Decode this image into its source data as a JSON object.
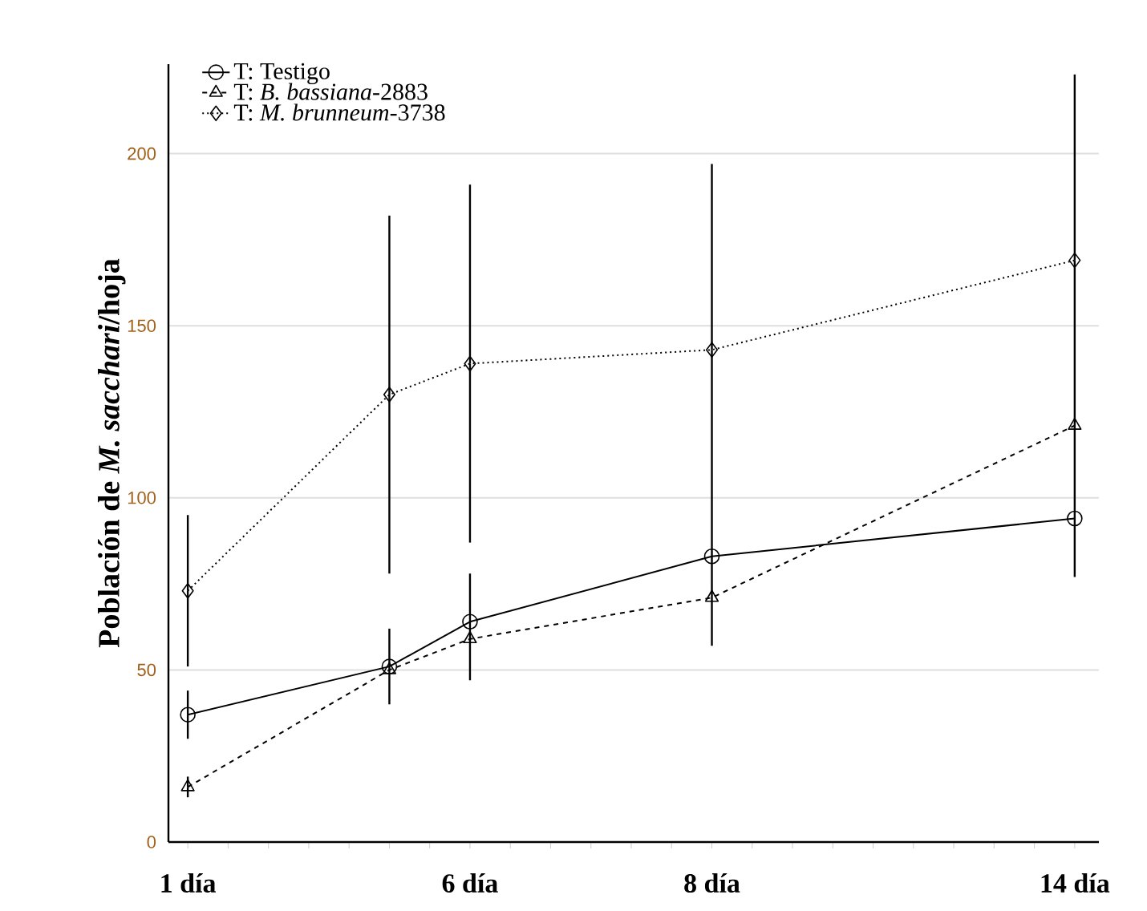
{
  "chart_data": {
    "type": "line",
    "ylabel": "**Población de *M. sacchari*/hoja**",
    "categories": [
      "1 día",
      null,
      null,
      null,
      null,
      null,
      null,
      "6 día",
      null,
      null,
      null,
      null,
      null,
      "8 día",
      null,
      null,
      null,
      null,
      null,
      null,
      null,
      null,
      "14 día"
    ],
    "series": [
      {
        "name": "T: Testigo",
        "color": "#000000",
        "marker": "circle",
        "line_style": "solid",
        "values": [
          37,
          null,
          null,
          null,
          null,
          51,
          null,
          64,
          null,
          null,
          null,
          null,
          null,
          83,
          null,
          null,
          null,
          null,
          null,
          null,
          null,
          null,
          94
        ],
        "errors": [
          7,
          null,
          null,
          null,
          null,
          11,
          null,
          [
            47,
            78
          ],
          null,
          null,
          null,
          null,
          null,
          null,
          null,
          null,
          null,
          null,
          null,
          null,
          null,
          null,
          null
        ]
      },
      {
        "name": "T: *B. bassiana*-2883",
        "color": "#000000",
        "marker": "triangle",
        "line_style": "dashed",
        "values": [
          16,
          null,
          null,
          null,
          null,
          50,
          null,
          59,
          null,
          null,
          null,
          null,
          null,
          71,
          null,
          null,
          null,
          null,
          null,
          null,
          null,
          null,
          121
        ],
        "errors": [
          3,
          null,
          null,
          null,
          null,
          null,
          null,
          null,
          null,
          null,
          null,
          null,
          null,
          null,
          null,
          null,
          null,
          null,
          null,
          null,
          null,
          null,
          null
        ]
      },
      {
        "name": "T: *M. brunneum*-3738",
        "color": "#000000",
        "marker": "diamond",
        "line_style": "dotted",
        "values": [
          73,
          null,
          null,
          null,
          null,
          130,
          null,
          139,
          null,
          null,
          null,
          null,
          null,
          143,
          null,
          null,
          null,
          null,
          null,
          null,
          null,
          null,
          169
        ],
        "errors": [
          22,
          null,
          null,
          null,
          null,
          52,
          null,
          52,
          null,
          null,
          null,
          null,
          null,
          [
            57,
            197
          ],
          null,
          null,
          null,
          null,
          null,
          null,
          null,
          null,
          [
            77,
            223
          ]
        ]
      }
    ],
    "ylim": [
      0,
      226
    ],
    "yticks": [
      0,
      50,
      100,
      150,
      200
    ],
    "grid": "y",
    "legend": "top left"
  }
}
